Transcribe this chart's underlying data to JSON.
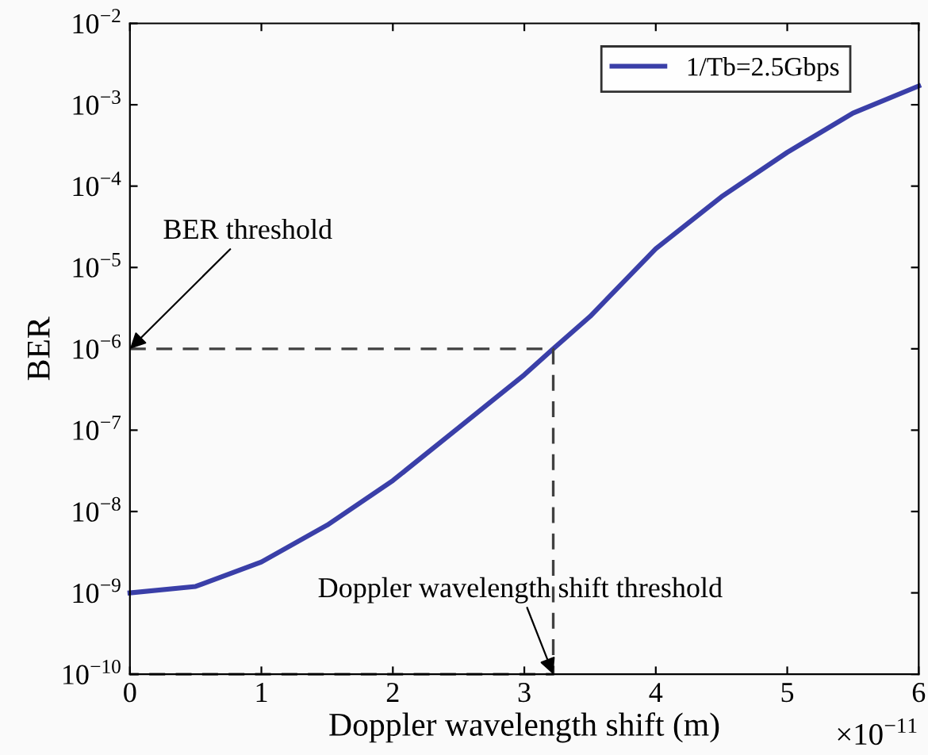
{
  "chart_data": {
    "type": "line",
    "xlabel": "Doppler wavelength shift (m)",
    "ylabel": "BER",
    "log": "y",
    "xlim": [
      0,
      6
    ],
    "xticks": [
      0,
      1,
      2,
      3,
      4,
      5,
      6
    ],
    "ylim": [
      1e-10,
      0.01
    ],
    "yticks": [
      {
        "value": 1e-10,
        "label": "10$^{−10}$"
      },
      {
        "value": 1e-09,
        "label": "10$^{−9}$"
      },
      {
        "value": 1e-08,
        "label": "10$^{−8}$"
      },
      {
        "value": 1e-07,
        "label": "10$^{−7}$"
      },
      {
        "value": 1e-06,
        "label": "10$^{−6}$"
      },
      {
        "value": 1e-05,
        "label": "10$^{−5}$"
      },
      {
        "value": 0.0001,
        "label": "10$^{−4}$"
      },
      {
        "value": 0.001,
        "label": "10$^{−3}$"
      },
      {
        "value": 0.01,
        "label": "10$^{−2}$"
      }
    ],
    "series": [
      {
        "name": "1/Tb=2.5Gbps",
        "color": "#3a3fa8",
        "x": [
          0,
          0.5,
          1,
          1.5,
          2,
          2.5,
          3,
          3.22,
          3.5,
          4,
          4.5,
          5,
          5.5,
          6
        ],
        "values": [
          1e-09,
          1.2e-09,
          2.4e-09,
          6.8e-09,
          2.4e-08,
          1.07e-07,
          4.8e-07,
          1e-06,
          2.5e-06,
          1.7e-05,
          7.4e-05,
          0.00026,
          0.00079,
          0.0017
        ]
      },
      {
        "color": "#404040",
        "line_style": "dashed",
        "x": [
          0,
          3.22,
          3.22,
          0
        ],
        "values": [
          1e-06,
          1e-06,
          1e-10,
          1e-10
        ]
      }
    ],
    "annotations": [
      {
        "text": "BER threshold",
        "x": 0,
        "y": 1e-06
      },
      {
        "text": "Doppler wavelength shift threshold",
        "x": 3.22,
        "y": 1e-10
      },
      "×10$^{−11}$"
    ],
    "legend": "top right",
    "grid": false
  }
}
